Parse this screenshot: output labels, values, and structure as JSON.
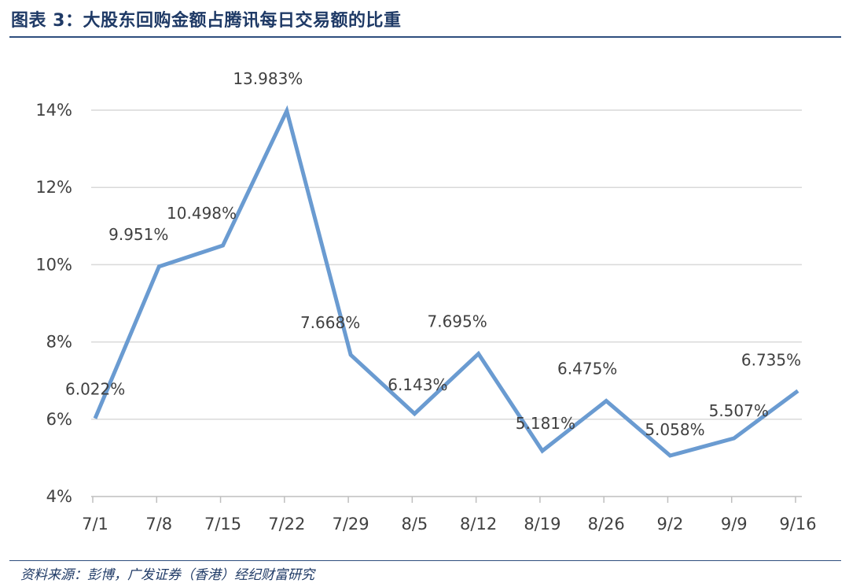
{
  "title": "图表 3：大股东回购金额占腾讯每日交易额的比重",
  "source": "资料来源：彭博，广发证券（香港）经纪财富研究",
  "chart_data": {
    "type": "line",
    "categories": [
      "7/1",
      "7/8",
      "7/15",
      "7/22",
      "7/29",
      "8/5",
      "8/12",
      "8/19",
      "8/26",
      "9/2",
      "9/9",
      "9/16"
    ],
    "series": [
      {
        "values": [
          6.022,
          9.951,
          10.498,
          13.983,
          7.668,
          6.143,
          7.695,
          5.181,
          6.475,
          5.058,
          5.507,
          6.735
        ],
        "labels": [
          "6.022%",
          "9.951%",
          "10.498%",
          "13.983%",
          "7.668%",
          "6.143%",
          "7.695%",
          "5.181%",
          "6.475%",
          "5.058%",
          "5.507%",
          "6.735%"
        ]
      }
    ],
    "yticks": [
      4,
      6,
      8,
      10,
      12,
      14
    ],
    "ytick_labels": [
      "4%",
      "6%",
      "8%",
      "10%",
      "12%",
      "14%"
    ],
    "ylim": [
      4,
      14
    ],
    "grid": true,
    "line_color": "#6A9BD1",
    "grid_color": "#D9D9D9"
  }
}
